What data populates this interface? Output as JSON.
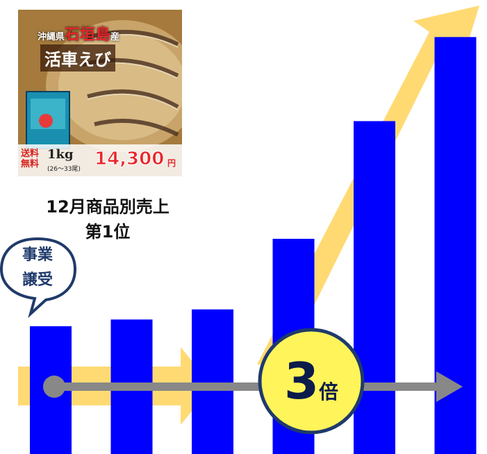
{
  "product": {
    "origin_prefix": "沖縄県",
    "origin_name": "石垣島",
    "origin_suffix": "産",
    "name": "活車えび",
    "shipping": "送料無料",
    "weight": "1kg",
    "count": "(26〜33尾)",
    "price": "14,300",
    "price_unit": "円"
  },
  "rank_label_line1": "12月商品別売上",
  "rank_label_line2": "第1位",
  "callout": {
    "line1": "事業",
    "line2": "譲受"
  },
  "multiplier": {
    "value": "3",
    "unit": "倍"
  },
  "colors": {
    "bar": "#0000ff",
    "arrow": "#ffd45a",
    "timeline": "#888888",
    "badge_fill": "#fff45a",
    "badge_stroke": "#1f3a6b"
  },
  "chart_data": {
    "type": "bar",
    "values": [
      190,
      200,
      215,
      320,
      495,
      620
    ],
    "ylim": [
      0,
      640
    ],
    "grid": false,
    "legend": "none"
  }
}
